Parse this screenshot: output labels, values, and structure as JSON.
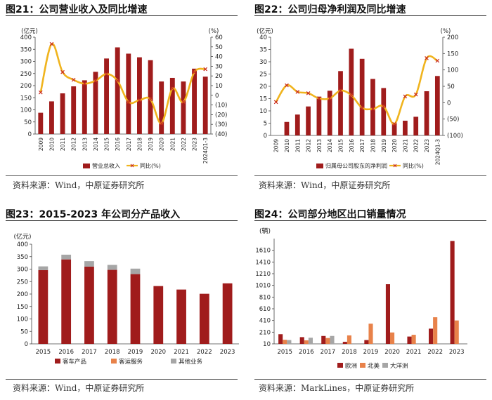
{
  "colors": {
    "bar": "#A01C1C",
    "line": "#F0B41E",
    "marker": "#C8281E",
    "bar2": "#E8824A",
    "bar3": "#A6A6A6"
  },
  "fig21": {
    "title": "图21：公司营业收入及同比增速",
    "source": "资料来源：Wind，中原证券研究所"
  },
  "fig22": {
    "title": "图22：公司归母净利润及同比增速",
    "source": "资料来源：Wind，中原证券研究所"
  },
  "fig23": {
    "title": "图23：2015-2023 年公司分产品收入",
    "source": "资料来源：Wind，中原证券研究所"
  },
  "fig24": {
    "title": "图24：公司部分地区出口销量情况",
    "source": "资料来源：MarkLines，中原证券研究所"
  },
  "chart_data": [
    {
      "id": "fig21",
      "type": "bar+line",
      "categories": [
        "2009",
        "2010",
        "2011",
        "2012",
        "2013",
        "2014",
        "2015",
        "2016",
        "2017",
        "2018",
        "2019",
        "2020",
        "2021",
        "2022",
        "2023",
        "2024Q1-3"
      ],
      "left_unit": "(亿元)",
      "right_unit": "(%)",
      "left_ticks": [
        "0",
        "50",
        "100",
        "150",
        "200",
        "250",
        "300",
        "350",
        "400"
      ],
      "left_ylim": [
        0,
        400
      ],
      "right_ticks": [
        "(40)",
        "(30)",
        "(20)",
        "(10)",
        "0",
        "10",
        "20",
        "30",
        "40",
        "50",
        "60"
      ],
      "right_ylim": [
        -40,
        60
      ],
      "series": [
        {
          "name": "营业总收入",
          "kind": "bar",
          "axis": "left",
          "values": [
            88,
            135,
            168,
            197,
            222,
            257,
            312,
            358,
            332,
            317,
            305,
            217,
            232,
            217,
            270,
            237
          ]
        },
        {
          "name": "同比(%)",
          "kind": "line",
          "axis": "right",
          "values": [
            3,
            53,
            24,
            16,
            12,
            15,
            22,
            15,
            -7,
            -5,
            -4,
            -29,
            7,
            -7,
            24,
            27
          ]
        }
      ]
    },
    {
      "id": "fig22",
      "type": "bar+line",
      "categories": [
        "2009",
        "2010",
        "2011",
        "2012",
        "2013",
        "2014",
        "2015",
        "2016",
        "2017",
        "2018",
        "2019",
        "2020",
        "2021",
        "2022",
        "2023",
        "2024Q1-3"
      ],
      "left_unit": "(亿元)",
      "right_unit": "(%)",
      "left_ticks": [
        "0",
        "5",
        "10",
        "15",
        "20",
        "25",
        "30",
        "35",
        "40"
      ],
      "left_ylim": [
        0,
        40
      ],
      "right_ticks": [
        "(100)",
        "(50)",
        "0",
        "50",
        "100",
        "150",
        "200"
      ],
      "right_ylim": [
        -100,
        200
      ],
      "series": [
        {
          "name": "归属母公司股东的净利润",
          "kind": "bar",
          "axis": "left",
          "values": [
            0,
            5.5,
            8.5,
            11.8,
            15.8,
            18.2,
            26.2,
            35.3,
            31.2,
            23,
            19.3,
            5.1,
            6,
            7.6,
            18,
            24.2
          ]
        },
        {
          "name": "同比(%)",
          "kind": "line",
          "axis": "right",
          "values": [
            2,
            53,
            33,
            29,
            13,
            13,
            37,
            23,
            -16,
            -19,
            -11,
            -65,
            19,
            25,
            136,
            128
          ]
        }
      ]
    },
    {
      "id": "fig23",
      "type": "stacked-bar",
      "categories": [
        "2015",
        "2016",
        "2017",
        "2018",
        "2019",
        "2020",
        "2021",
        "2022",
        "2023"
      ],
      "unit": "(亿元)",
      "y_ticks": [
        "0",
        "50",
        "100",
        "150",
        "200",
        "250",
        "300",
        "350",
        "400"
      ],
      "ylim": [
        0,
        400
      ],
      "series": [
        {
          "name": "客车产品",
          "values": [
            296,
            339,
            310,
            297,
            280,
            232,
            218,
            201,
            243
          ]
        },
        {
          "name": "客运服务",
          "values": [
            0,
            0,
            0,
            0,
            0,
            0,
            0,
            0,
            0
          ]
        },
        {
          "name": "其他业务",
          "values": [
            15,
            19,
            22,
            20,
            22,
            0,
            0,
            0,
            0
          ]
        }
      ]
    },
    {
      "id": "fig24",
      "type": "bar",
      "categories": [
        "2015",
        "2016",
        "2017",
        "2018",
        "2019",
        "2020",
        "2021",
        "2022",
        "2023"
      ],
      "unit": "(辆)",
      "y_ticks": [
        "10",
        "210",
        "410",
        "610",
        "810",
        "1010",
        "1210",
        "1410",
        "1610"
      ],
      "ylim": [
        10,
        1810
      ],
      "series": [
        {
          "name": "欧洲",
          "values": [
            175,
            125,
            145,
            45,
            75,
            1030,
            135,
            270,
            1770
          ]
        },
        {
          "name": "北美",
          "values": [
            80,
            70,
            110,
            155,
            355,
            205,
            165,
            465,
            410
          ]
        },
        {
          "name": "大洋洲",
          "values": [
            75,
            115,
            145,
            0,
            0,
            0,
            0,
            0,
            0
          ]
        }
      ]
    }
  ]
}
